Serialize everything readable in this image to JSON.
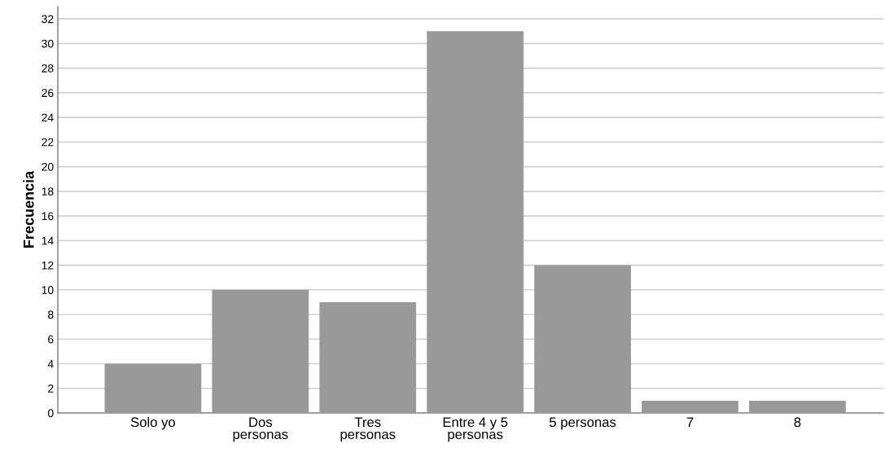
{
  "chart_data": {
    "type": "bar",
    "ylabel": "Frecuencia",
    "categories": [
      "Solo yo",
      "Dos\npersonas",
      "Tres\npersonas",
      "Entre 4 y 5\npersonas",
      "5 personas",
      "7",
      "8"
    ],
    "values": [
      4,
      10,
      9,
      31,
      12,
      1,
      1
    ],
    "color": "#999999",
    "ylim": [
      0,
      33
    ],
    "yticks": [
      0,
      2,
      4,
      6,
      8,
      10,
      12,
      14,
      16,
      18,
      20,
      22,
      24,
      26,
      28,
      30,
      32
    ],
    "grid": "y",
    "legend": false
  }
}
